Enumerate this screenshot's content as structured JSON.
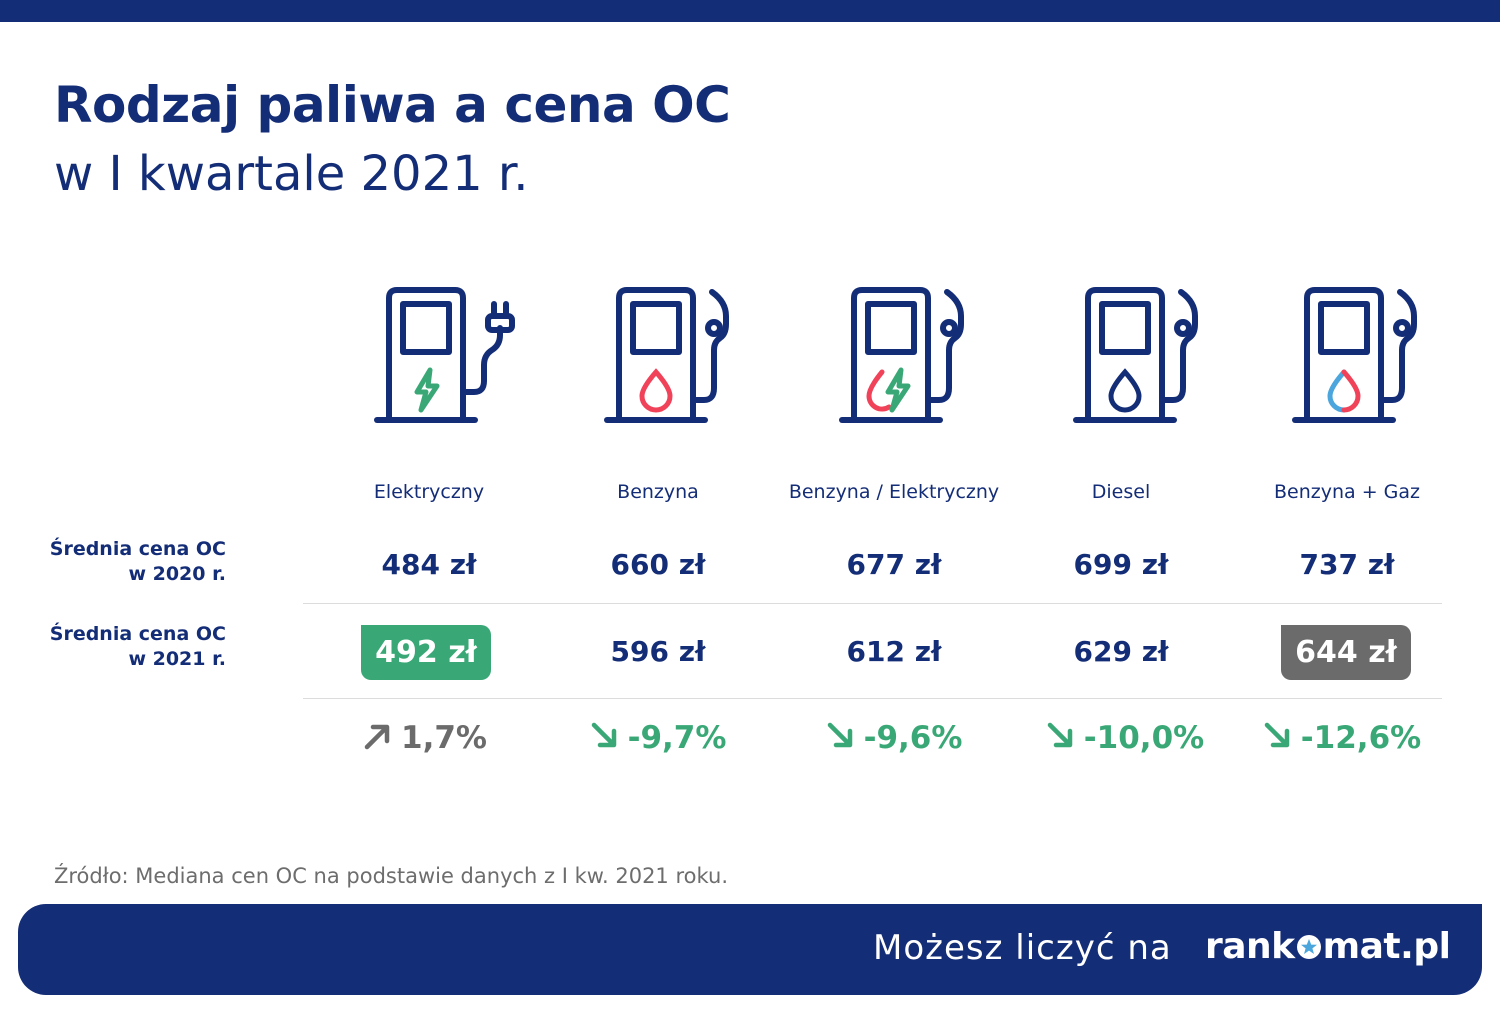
{
  "title": "Rodzaj paliwa a cena OC",
  "subtitle": "w I kwartale 2021 r.",
  "row_labels": {
    "r2020_line1": "Średnia cena OC",
    "r2020_line2": "w 2020 r.",
    "r2021_line1": "Średnia cena OC",
    "r2021_line2": "w 2021 r."
  },
  "chart_data": {
    "type": "table",
    "categories": [
      "Elektryczny",
      "Benzyna",
      "Benzyna / Elektryczny",
      "Diesel",
      "Benzyna + Gaz"
    ],
    "series": [
      {
        "name": "Średnia cena OC w 2020 r.",
        "values": [
          484,
          660,
          677,
          699,
          737
        ],
        "labels": [
          "484 zł",
          "660 zł",
          "677 zł",
          "699 zł",
          "737 zł"
        ]
      },
      {
        "name": "Średnia cena OC w 2021 r.",
        "values": [
          492,
          596,
          612,
          629,
          644
        ],
        "labels": [
          "492 zł",
          "596 zł",
          "612 zł",
          "629 zł",
          "644 zł"
        ]
      }
    ],
    "change_percent": [
      1.7,
      -9.7,
      -9.6,
      -10.0,
      -12.6
    ],
    "change_labels": [
      "1,7%",
      "-9,7%",
      "-9,6%",
      "-10,0%",
      "-12,6%"
    ],
    "highlight_lowest_2021": "Elektryczny",
    "highlight_highest_2021_savings": "Benzyna + Gaz"
  },
  "icons": [
    "ev-charger-icon",
    "petrol-pump-icon",
    "hybrid-pump-icon",
    "diesel-pump-icon",
    "lpg-pump-icon"
  ],
  "colors": {
    "navy": "#142d77",
    "green": "#3aa876",
    "gray": "#6b6b6b",
    "red": "#f0435a",
    "blue": "#4aa6dc",
    "increase": "#6b6b6b",
    "decrease": "#3aa876"
  },
  "source": "Źródło: Mediana cen OC na podstawie danych z I kw. 2021 roku.",
  "footer": {
    "tagline": "Możesz liczyć na",
    "logo_left": "rank",
    "logo_right": "mat.pl"
  }
}
